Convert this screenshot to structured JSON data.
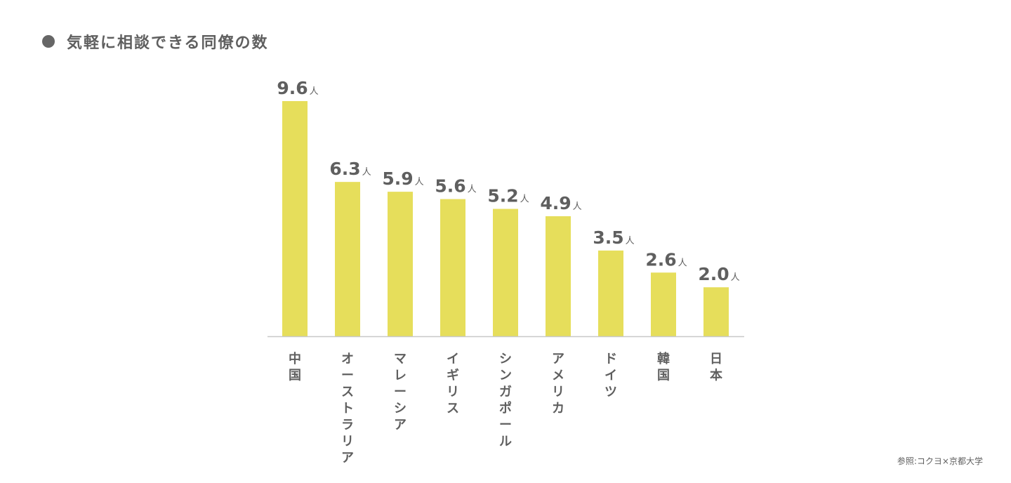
{
  "header": {
    "title": "気軽に相談できる同僚の数"
  },
  "source": "参照:コクヨ×京都大学",
  "colors": {
    "bar": "#e6de5b",
    "text": "#5f5f5f",
    "axis": "#c8c8c8",
    "bullet": "#666666"
  },
  "chart_data": {
    "type": "bar",
    "categories": [
      "中国",
      "オーストラリア",
      "マレーシア",
      "イギリス",
      "シンガポール",
      "アメリカ",
      "ドイツ",
      "韓国",
      "日本"
    ],
    "values": [
      9.6,
      6.3,
      5.9,
      5.6,
      5.2,
      4.9,
      3.5,
      2.6,
      2.0
    ],
    "value_labels": [
      "9.6",
      "6.3",
      "5.9",
      "5.6",
      "5.2",
      "4.9",
      "3.5",
      "2.6",
      "2.0"
    ],
    "unit": "人",
    "ylim": [
      0,
      9.6
    ],
    "grid": false,
    "legend": "none",
    "category_label_orientation": "vertical"
  }
}
